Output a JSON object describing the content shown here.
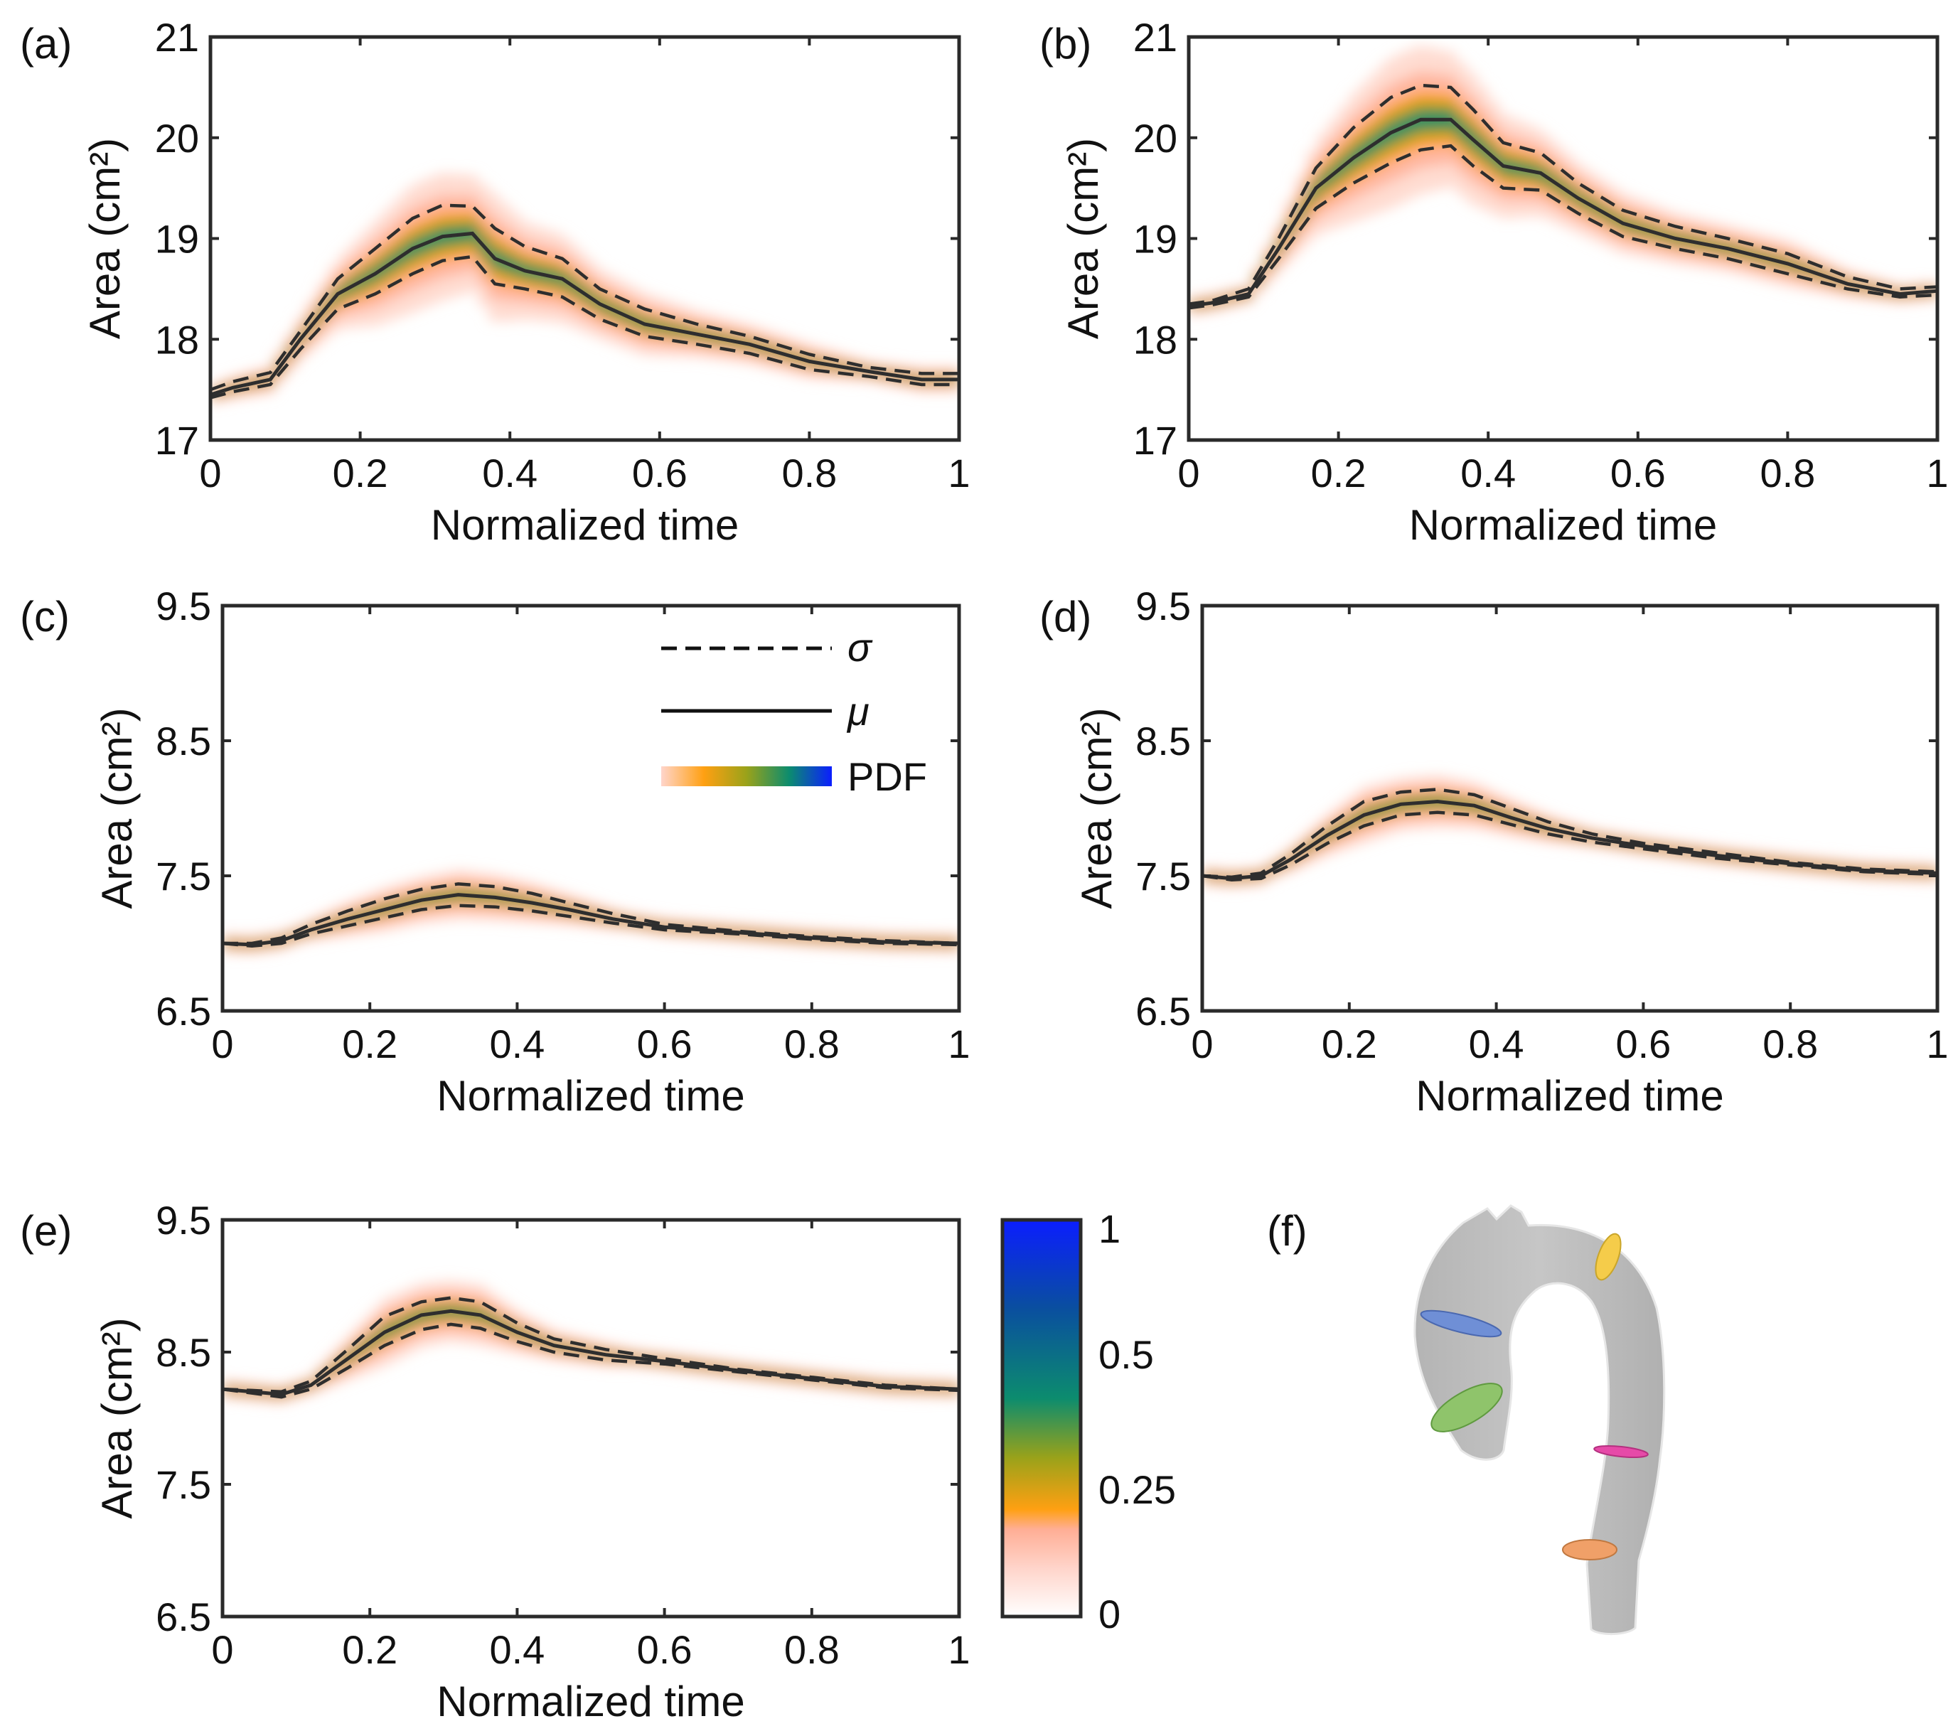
{
  "chart_data": [
    {
      "panel": "(a)",
      "type": "line",
      "xlabel": "Normalized time",
      "ylabel": "Area (cm²)",
      "xlim": [
        0,
        1
      ],
      "ylim": [
        17,
        21
      ],
      "xticks": [
        "0",
        "0.2",
        "0.4",
        "0.6",
        "0.8",
        "1"
      ],
      "yticks": [
        "17",
        "18",
        "19",
        "20",
        "21"
      ],
      "x": [
        0,
        0.03,
        0.08,
        0.12,
        0.17,
        0.22,
        0.27,
        0.31,
        0.35,
        0.38,
        0.42,
        0.47,
        0.52,
        0.58,
        0.65,
        0.72,
        0.8,
        0.88,
        0.95,
        1.0
      ],
      "mu": [
        17.45,
        17.52,
        17.6,
        18.0,
        18.45,
        18.65,
        18.9,
        19.02,
        19.05,
        18.8,
        18.68,
        18.6,
        18.35,
        18.15,
        18.05,
        17.95,
        17.78,
        17.68,
        17.6,
        17.6
      ],
      "sigma_upper": [
        17.5,
        17.58,
        17.67,
        18.08,
        18.6,
        18.9,
        19.2,
        19.33,
        19.32,
        19.1,
        18.92,
        18.8,
        18.5,
        18.3,
        18.15,
        18.03,
        17.85,
        17.72,
        17.66,
        17.66
      ],
      "sigma_lower": [
        17.42,
        17.48,
        17.55,
        17.9,
        18.3,
        18.45,
        18.65,
        18.78,
        18.82,
        18.55,
        18.5,
        18.42,
        18.2,
        18.03,
        17.95,
        17.86,
        17.7,
        17.63,
        17.55,
        17.55
      ],
      "series": [
        {
          "name": "σ"
        },
        {
          "name": "μ"
        },
        {
          "name": "PDF"
        }
      ]
    },
    {
      "panel": "(b)",
      "type": "line",
      "xlabel": "Normalized time",
      "ylabel": "Area (cm²)",
      "xlim": [
        0,
        1
      ],
      "ylim": [
        17,
        21
      ],
      "xticks": [
        "0",
        "0.2",
        "0.4",
        "0.6",
        "0.8",
        "1"
      ],
      "yticks": [
        "17",
        "18",
        "19",
        "20",
        "21"
      ],
      "x": [
        0,
        0.03,
        0.08,
        0.12,
        0.17,
        0.22,
        0.27,
        0.31,
        0.35,
        0.38,
        0.42,
        0.47,
        0.52,
        0.58,
        0.65,
        0.72,
        0.8,
        0.88,
        0.95,
        1.0
      ],
      "mu": [
        18.33,
        18.36,
        18.45,
        18.9,
        19.5,
        19.8,
        20.05,
        20.18,
        20.18,
        19.98,
        19.72,
        19.65,
        19.4,
        19.15,
        19.0,
        18.9,
        18.75,
        18.55,
        18.45,
        18.48
      ],
      "sigma_upper": [
        18.35,
        18.38,
        18.5,
        19.0,
        19.7,
        20.1,
        20.4,
        20.52,
        20.5,
        20.28,
        19.95,
        19.85,
        19.55,
        19.28,
        19.12,
        19.0,
        18.85,
        18.62,
        18.5,
        18.52
      ],
      "sigma_lower": [
        18.31,
        18.34,
        18.42,
        18.8,
        19.3,
        19.55,
        19.75,
        19.88,
        19.92,
        19.72,
        19.5,
        19.48,
        19.25,
        19.02,
        18.9,
        18.8,
        18.65,
        18.5,
        18.42,
        18.44
      ]
    },
    {
      "panel": "(c)",
      "type": "line",
      "xlabel": "Normalized time",
      "ylabel": "Area (cm²)",
      "xlim": [
        0,
        1
      ],
      "ylim": [
        6.5,
        9.5
      ],
      "xticks": [
        "0",
        "0.2",
        "0.4",
        "0.6",
        "0.8",
        "1"
      ],
      "yticks": [
        "6.5",
        "7.5",
        "8.5",
        "9.5"
      ],
      "x": [
        0,
        0.04,
        0.08,
        0.12,
        0.17,
        0.22,
        0.27,
        0.32,
        0.37,
        0.42,
        0.47,
        0.53,
        0.6,
        0.7,
        0.8,
        0.9,
        1.0
      ],
      "mu": [
        7.0,
        6.99,
        7.02,
        7.1,
        7.18,
        7.25,
        7.32,
        7.36,
        7.34,
        7.3,
        7.25,
        7.18,
        7.12,
        7.08,
        7.04,
        7.01,
        7.0
      ],
      "sigma_upper": [
        7.0,
        7.0,
        7.04,
        7.14,
        7.24,
        7.33,
        7.4,
        7.44,
        7.42,
        7.37,
        7.3,
        7.22,
        7.14,
        7.09,
        7.05,
        7.02,
        7.0
      ],
      "sigma_lower": [
        7.0,
        6.98,
        7.0,
        7.07,
        7.13,
        7.19,
        7.25,
        7.28,
        7.27,
        7.24,
        7.2,
        7.15,
        7.1,
        7.07,
        7.03,
        7.0,
        6.99
      ],
      "legend": {
        "sigma": "σ",
        "mu": "μ",
        "pdf": "PDF"
      }
    },
    {
      "panel": "(d)",
      "type": "line",
      "xlabel": "Normalized time",
      "ylabel": "Area (cm²)",
      "xlim": [
        0,
        1
      ],
      "ylim": [
        6.5,
        9.5
      ],
      "xticks": [
        "0",
        "0.2",
        "0.4",
        "0.6",
        "0.8",
        "1"
      ],
      "yticks": [
        "6.5",
        "7.5",
        "8.5",
        "9.5"
      ],
      "x": [
        0,
        0.04,
        0.08,
        0.12,
        0.17,
        0.22,
        0.27,
        0.32,
        0.37,
        0.42,
        0.47,
        0.53,
        0.6,
        0.7,
        0.8,
        0.9,
        1.0
      ],
      "mu": [
        7.5,
        7.48,
        7.5,
        7.62,
        7.8,
        7.95,
        8.03,
        8.05,
        8.02,
        7.93,
        7.85,
        7.78,
        7.72,
        7.65,
        7.59,
        7.54,
        7.52
      ],
      "sigma_upper": [
        7.5,
        7.49,
        7.52,
        7.66,
        7.87,
        8.05,
        8.12,
        8.14,
        8.1,
        8.0,
        7.9,
        7.81,
        7.74,
        7.67,
        7.6,
        7.55,
        7.53
      ],
      "sigma_lower": [
        7.5,
        7.47,
        7.48,
        7.58,
        7.74,
        7.87,
        7.95,
        7.97,
        7.95,
        7.88,
        7.81,
        7.75,
        7.7,
        7.63,
        7.58,
        7.53,
        7.51
      ]
    },
    {
      "panel": "(e)",
      "type": "line",
      "xlabel": "Normalized time",
      "ylabel": "Area (cm²)",
      "xlim": [
        0,
        1
      ],
      "ylim": [
        6.5,
        9.5
      ],
      "xticks": [
        "0",
        "0.2",
        "0.4",
        "0.6",
        "0.8",
        "1"
      ],
      "yticks": [
        "6.5",
        "7.5",
        "8.5",
        "9.5"
      ],
      "x": [
        0,
        0.04,
        0.08,
        0.12,
        0.17,
        0.22,
        0.27,
        0.31,
        0.35,
        0.4,
        0.45,
        0.52,
        0.6,
        0.7,
        0.8,
        0.9,
        1.0
      ],
      "mu": [
        8.22,
        8.2,
        8.18,
        8.25,
        8.45,
        8.65,
        8.78,
        8.81,
        8.78,
        8.65,
        8.55,
        8.48,
        8.43,
        8.36,
        8.3,
        8.24,
        8.22
      ],
      "sigma_upper": [
        8.22,
        8.21,
        8.2,
        8.28,
        8.52,
        8.77,
        8.88,
        8.91,
        8.88,
        8.72,
        8.6,
        8.52,
        8.45,
        8.37,
        8.31,
        8.25,
        8.22
      ],
      "sigma_lower": [
        8.22,
        8.19,
        8.16,
        8.22,
        8.38,
        8.55,
        8.67,
        8.71,
        8.68,
        8.58,
        8.5,
        8.44,
        8.41,
        8.35,
        8.29,
        8.23,
        8.21
      ]
    }
  ],
  "colorbar": {
    "ticks": [
      "0",
      "0.25",
      "0.5",
      "1"
    ],
    "tick_values": [
      0,
      0.25,
      0.5,
      1
    ],
    "colors": [
      "#ffffff",
      "#ffb7a5",
      "#ffa012",
      "#9aa21a",
      "#0c8c6e",
      "#0a3ea8",
      "#0b1eff"
    ]
  },
  "panel_f": {
    "label": "(f)",
    "vessel_color": "#c0c0c0",
    "ring_colors": [
      "#f5cc4a",
      "#6f8fd6",
      "#8fc46b",
      "#e64aa8",
      "#f0a068"
    ]
  }
}
